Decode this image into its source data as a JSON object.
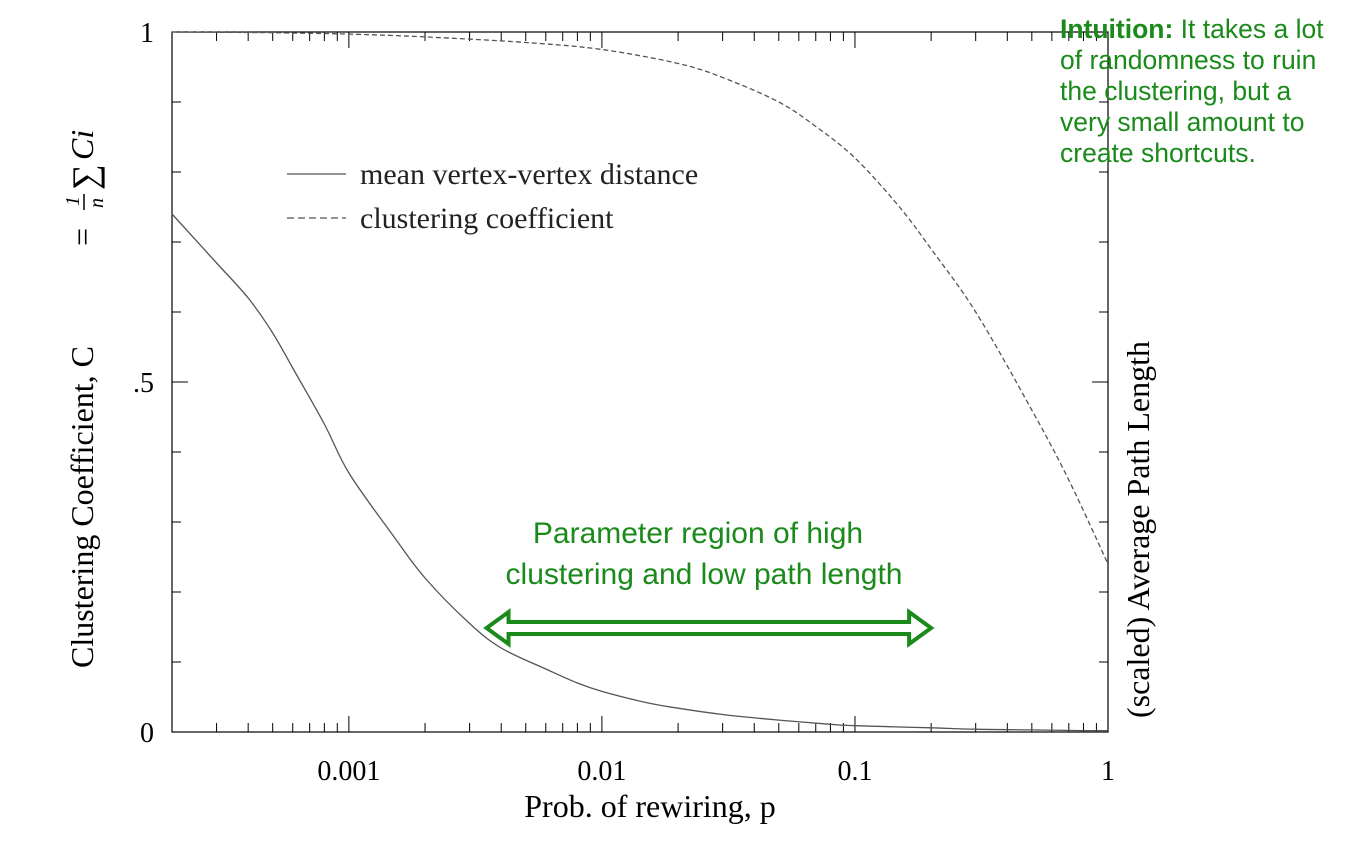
{
  "chart_data": {
    "type": "line",
    "xlabel": "Prob. of rewiring, p",
    "ylabel_left": "Clustering Coefficient, C",
    "ylabel_left_formula": {
      "equals": "=",
      "frac_num": "1",
      "frac_den": "n",
      "sum": "∑",
      "term": "Ci"
    },
    "ylabel_right": "(scaled) Average Path Length",
    "x_scale": "log",
    "xlim": [
      0.0002,
      1
    ],
    "ylim": [
      0,
      1
    ],
    "x_ticks": [
      {
        "value": 0.001,
        "label": "0.001"
      },
      {
        "value": 0.01,
        "label": "0.01"
      },
      {
        "value": 0.1,
        "label": "0.1"
      },
      {
        "value": 1,
        "label": "1"
      }
    ],
    "y_ticks": [
      {
        "value": 0,
        "label": "0"
      },
      {
        "value": 0.5,
        "label": ".5"
      },
      {
        "value": 1,
        "label": "1"
      }
    ],
    "legend": {
      "position": "upper-left"
    },
    "series": [
      {
        "name": "mean vertex-vertex distance",
        "style": "solid",
        "color": "#555555",
        "x": [
          0.0002,
          0.0003,
          0.0004,
          0.0005,
          0.0006,
          0.0008,
          0.001,
          0.0015,
          0.002,
          0.003,
          0.004,
          0.006,
          0.008,
          0.01,
          0.015,
          0.02,
          0.03,
          0.05,
          0.08,
          0.1,
          0.2,
          0.3,
          0.5,
          0.8,
          1
        ],
        "y": [
          0.74,
          0.67,
          0.62,
          0.57,
          0.52,
          0.44,
          0.37,
          0.28,
          0.22,
          0.155,
          0.12,
          0.09,
          0.07,
          0.058,
          0.042,
          0.034,
          0.025,
          0.017,
          0.011,
          0.009,
          0.006,
          0.004,
          0.003,
          0.002,
          0.002
        ]
      },
      {
        "name": "clustering coefficient",
        "style": "dashed",
        "color": "#555555",
        "x": [
          0.0002,
          0.0005,
          0.001,
          0.002,
          0.005,
          0.01,
          0.02,
          0.03,
          0.05,
          0.07,
          0.1,
          0.15,
          0.2,
          0.3,
          0.5,
          0.7,
          1
        ],
        "y": [
          1.0,
          0.999,
          0.997,
          0.993,
          0.985,
          0.975,
          0.955,
          0.935,
          0.9,
          0.865,
          0.82,
          0.75,
          0.69,
          0.6,
          0.46,
          0.36,
          0.24
        ]
      }
    ],
    "annotations": {
      "region": {
        "line1": "Parameter region of high",
        "line2": "clustering and low path length",
        "x_from": 0.0035,
        "x_to": 0.2,
        "y": 0.16,
        "color": "#1a8a1a"
      },
      "intuition": {
        "bold": "Intuition:",
        "text": " It takes a lot of randomness to ruin the clustering, but a very small amount to create shortcuts.",
        "color": "#1a8a1a"
      }
    }
  }
}
